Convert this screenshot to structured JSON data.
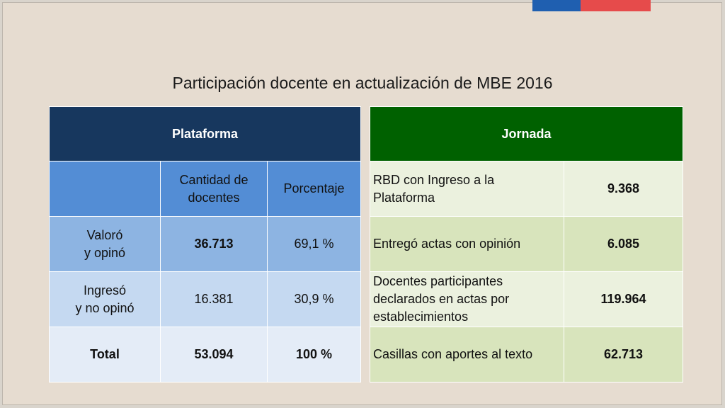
{
  "title": "Participación docente en actualización de MBE 2016",
  "plataforma": {
    "header": "Plataforma",
    "col_cantidad": "Cantidad de\ndocentes",
    "col_porcentaje": "Porcentaje",
    "rows": [
      {
        "label": "Valoró\ny opinó",
        "cantidad": "36.713",
        "porcentaje": "69,1 %"
      },
      {
        "label": "Ingresó\ny no opinó",
        "cantidad": "16.381",
        "porcentaje": "30,9 %"
      },
      {
        "label": "Total",
        "cantidad": "53.094",
        "porcentaje": "100 %"
      }
    ]
  },
  "jornada": {
    "header": "Jornada",
    "rows": [
      {
        "label": "RBD con Ingreso a la\nPlataforma",
        "value": "9.368"
      },
      {
        "label": "Entregó actas con opinión",
        "value": "6.085"
      },
      {
        "label": "Docentes participantes\ndeclarados en actas por\nestablecimientos",
        "value": "119.964"
      },
      {
        "label": "Casillas con aportes al texto",
        "value": "62.713"
      }
    ]
  },
  "colors": {
    "plataforma_header": "#17375e",
    "jornada_header": "#006100",
    "flag_blue": "#1f5fb0",
    "flag_red": "#e64b4b"
  }
}
